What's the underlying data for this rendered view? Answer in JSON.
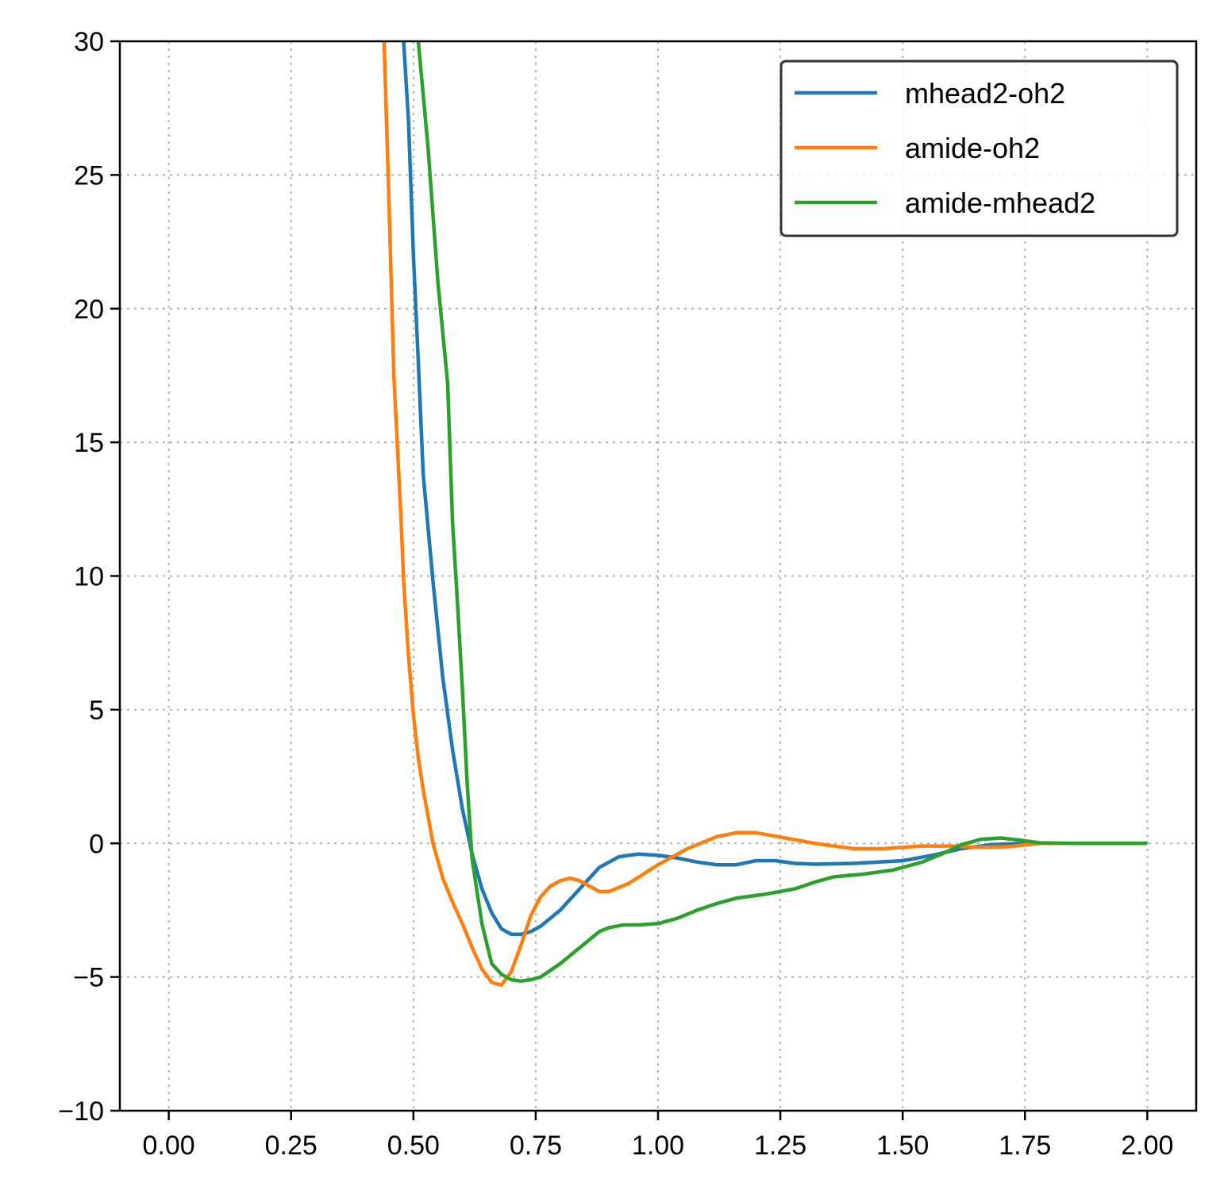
{
  "chart_data": {
    "type": "line",
    "title": "",
    "xlabel": "",
    "ylabel": "",
    "xlim": [
      -0.1,
      2.1
    ],
    "ylim": [
      -10,
      30
    ],
    "x_ticks": [
      0.0,
      0.25,
      0.5,
      0.75,
      1.0,
      1.25,
      1.5,
      1.75,
      2.0
    ],
    "x_tick_labels": [
      "0.00",
      "0.25",
      "0.50",
      "0.75",
      "1.00",
      "1.25",
      "1.50",
      "1.75",
      "2.00"
    ],
    "y_ticks": [
      -10,
      -5,
      0,
      5,
      10,
      15,
      20,
      25,
      30
    ],
    "y_tick_labels": [
      "−10",
      "−5",
      "0",
      "5",
      "10",
      "15",
      "20",
      "25",
      "30"
    ],
    "grid": true,
    "grid_style": "dotted",
    "legend_position": "top-right",
    "series": [
      {
        "name": "mhead2-oh2",
        "color": "#1f77b4",
        "points": [
          [
            0.48,
            30.0
          ],
          [
            0.49,
            27.0
          ],
          [
            0.5,
            22.0
          ],
          [
            0.51,
            18.0
          ],
          [
            0.52,
            13.8
          ],
          [
            0.54,
            9.8
          ],
          [
            0.56,
            6.2
          ],
          [
            0.58,
            3.5
          ],
          [
            0.6,
            1.3
          ],
          [
            0.62,
            -0.4
          ],
          [
            0.64,
            -1.7
          ],
          [
            0.66,
            -2.6
          ],
          [
            0.68,
            -3.2
          ],
          [
            0.7,
            -3.4
          ],
          [
            0.72,
            -3.4
          ],
          [
            0.74,
            -3.3
          ],
          [
            0.76,
            -3.1
          ],
          [
            0.8,
            -2.5
          ],
          [
            0.84,
            -1.7
          ],
          [
            0.88,
            -0.9
          ],
          [
            0.92,
            -0.5
          ],
          [
            0.96,
            -0.4
          ],
          [
            1.0,
            -0.45
          ],
          [
            1.04,
            -0.55
          ],
          [
            1.08,
            -0.7
          ],
          [
            1.12,
            -0.8
          ],
          [
            1.16,
            -0.8
          ],
          [
            1.2,
            -0.65
          ],
          [
            1.24,
            -0.65
          ],
          [
            1.28,
            -0.75
          ],
          [
            1.32,
            -0.78
          ],
          [
            1.4,
            -0.75
          ],
          [
            1.5,
            -0.65
          ],
          [
            1.56,
            -0.45
          ],
          [
            1.62,
            -0.2
          ],
          [
            1.68,
            -0.05
          ],
          [
            1.75,
            0.0
          ],
          [
            1.85,
            0.0
          ],
          [
            2.0,
            0.0
          ]
        ]
      },
      {
        "name": "amide-oh2",
        "color": "#ff7f0e",
        "points": [
          [
            0.44,
            30.0
          ],
          [
            0.45,
            24.0
          ],
          [
            0.46,
            17.5
          ],
          [
            0.475,
            12.0
          ],
          [
            0.48,
            9.8
          ],
          [
            0.49,
            7.0
          ],
          [
            0.5,
            4.8
          ],
          [
            0.51,
            3.2
          ],
          [
            0.52,
            2.0
          ],
          [
            0.54,
            0.0
          ],
          [
            0.56,
            -1.3
          ],
          [
            0.58,
            -2.2
          ],
          [
            0.6,
            -3.0
          ],
          [
            0.62,
            -3.9
          ],
          [
            0.64,
            -4.7
          ],
          [
            0.66,
            -5.2
          ],
          [
            0.68,
            -5.3
          ],
          [
            0.7,
            -4.8
          ],
          [
            0.72,
            -3.8
          ],
          [
            0.74,
            -2.7
          ],
          [
            0.76,
            -2.0
          ],
          [
            0.78,
            -1.6
          ],
          [
            0.8,
            -1.4
          ],
          [
            0.82,
            -1.3
          ],
          [
            0.84,
            -1.4
          ],
          [
            0.86,
            -1.6
          ],
          [
            0.88,
            -1.8
          ],
          [
            0.9,
            -1.8
          ],
          [
            0.94,
            -1.5
          ],
          [
            1.0,
            -0.8
          ],
          [
            1.06,
            -0.2
          ],
          [
            1.12,
            0.25
          ],
          [
            1.16,
            0.4
          ],
          [
            1.2,
            0.4
          ],
          [
            1.26,
            0.2
          ],
          [
            1.32,
            0.0
          ],
          [
            1.4,
            -0.2
          ],
          [
            1.46,
            -0.2
          ],
          [
            1.54,
            -0.1
          ],
          [
            1.6,
            -0.1
          ],
          [
            1.66,
            -0.15
          ],
          [
            1.72,
            -0.12
          ],
          [
            1.78,
            0.0
          ],
          [
            1.9,
            0.0
          ],
          [
            2.0,
            0.0
          ]
        ]
      },
      {
        "name": "amide-mhead2",
        "color": "#2ca02c",
        "points": [
          [
            0.51,
            30.0
          ],
          [
            0.53,
            26.0
          ],
          [
            0.55,
            21.0
          ],
          [
            0.57,
            17.2
          ],
          [
            0.58,
            12.0
          ],
          [
            0.59,
            9.0
          ],
          [
            0.6,
            5.8
          ],
          [
            0.61,
            2.2
          ],
          [
            0.62,
            -0.6
          ],
          [
            0.64,
            -3.0
          ],
          [
            0.66,
            -4.5
          ],
          [
            0.68,
            -4.9
          ],
          [
            0.7,
            -5.1
          ],
          [
            0.72,
            -5.15
          ],
          [
            0.74,
            -5.1
          ],
          [
            0.76,
            -5.0
          ],
          [
            0.8,
            -4.5
          ],
          [
            0.84,
            -3.9
          ],
          [
            0.88,
            -3.3
          ],
          [
            0.9,
            -3.15
          ],
          [
            0.93,
            -3.05
          ],
          [
            0.96,
            -3.05
          ],
          [
            1.0,
            -3.0
          ],
          [
            1.04,
            -2.8
          ],
          [
            1.08,
            -2.5
          ],
          [
            1.12,
            -2.25
          ],
          [
            1.16,
            -2.05
          ],
          [
            1.22,
            -1.9
          ],
          [
            1.28,
            -1.7
          ],
          [
            1.32,
            -1.45
          ],
          [
            1.36,
            -1.25
          ],
          [
            1.42,
            -1.15
          ],
          [
            1.48,
            -1.0
          ],
          [
            1.54,
            -0.7
          ],
          [
            1.58,
            -0.4
          ],
          [
            1.62,
            -0.05
          ],
          [
            1.66,
            0.15
          ],
          [
            1.7,
            0.2
          ],
          [
            1.74,
            0.12
          ],
          [
            1.78,
            0.02
          ],
          [
            1.85,
            0.0
          ],
          [
            2.0,
            0.0
          ]
        ]
      }
    ]
  }
}
